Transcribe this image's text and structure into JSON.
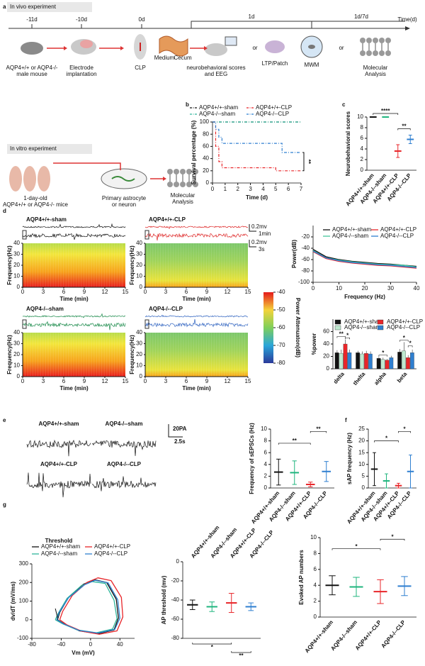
{
  "panel_labels": [
    "a",
    "b",
    "c",
    "d",
    "e",
    "f",
    "g"
  ],
  "schematic": {
    "in_vivo": {
      "title": "In vivo experiment",
      "timeline_labels": [
        "-11d",
        "-10d",
        "0d",
        "1d",
        "1d/7d"
      ],
      "time_axis_label": "Time(d)",
      "steps": [
        {
          "lines": [
            "AQP4+/+ or AQP4-/-",
            "male mouse"
          ]
        },
        {
          "lines": [
            "Electrode",
            "implantation"
          ]
        },
        {
          "lines": [
            "CLP"
          ]
        },
        {
          "lines": [
            "Medium"
          ]
        },
        {
          "lines": [
            "Cecum"
          ]
        },
        {
          "lines": [
            "neurobehavioral scores",
            "and EEG"
          ]
        },
        {
          "lines": [
            "or"
          ]
        },
        {
          "lines": [
            "LTP/Patch"
          ]
        },
        {
          "lines": [
            "MWM"
          ]
        },
        {
          "lines": [
            "or"
          ]
        },
        {
          "lines": [
            "Molecular",
            "Analysis"
          ]
        }
      ]
    },
    "in_vitro": {
      "title": "In vitro experiment",
      "steps": [
        {
          "lines": [
            "1-day-old",
            "AQP4+/+ or AQP4-/- mice"
          ]
        },
        {
          "lines": [
            "Primary astrocyte",
            "or neuron"
          ]
        },
        {
          "lines": [
            "Molecular",
            "Analysis"
          ]
        }
      ]
    }
  },
  "eeg": {
    "traces": [
      "AQP4+/+-sham",
      "AQP4+/+-CLP",
      "AQP4-/--sham",
      "AQP4-/--CLP"
    ],
    "scale_bars": [
      "0.2mv",
      "1min",
      "0.2mv",
      "3s"
    ],
    "spectrogram": {
      "ylabel": "Frequency(Hz)",
      "xlabel": "Time (min)",
      "ylim": [
        0,
        40
      ],
      "yticks": [
        0,
        10,
        20,
        30,
        40
      ],
      "xlim": [
        0,
        15
      ],
      "xticks": [
        0,
        3,
        6,
        9,
        12,
        15
      ]
    },
    "colorbar": {
      "label": "Power Attenuaton(dB)",
      "lim": [
        -80,
        -40
      ],
      "ticks": [
        -40,
        -50,
        -60,
        -70,
        -80
      ]
    }
  },
  "patch": {
    "traces": [
      "AQP4+/+-sham",
      "AQP4-/--sham",
      "AQP4+/+-CLP",
      "AQP4-/--CLP"
    ],
    "scale_bars": [
      "20PA",
      "2.5s"
    ]
  },
  "chart_data": [
    {
      "type": "step",
      "ylabel": "Survival percentage (%)",
      "xlabel": "Time (d)",
      "x": [
        0,
        0.25,
        0.5,
        0.75,
        1,
        2,
        3,
        4,
        5,
        5.5,
        7
      ],
      "xlim": [
        0,
        7
      ],
      "xticks": [
        0,
        1,
        2,
        3,
        4,
        5,
        6,
        7
      ],
      "ylim": [
        0,
        100
      ],
      "yticks": [
        0,
        20,
        40,
        60,
        80,
        100
      ],
      "line_style": "dash-dot",
      "legend": "top",
      "series": [
        {
          "name": "AQP4+/+-sham",
          "color": "#111111",
          "values": [
            100,
            100,
            100,
            100,
            100,
            100,
            100,
            100,
            100,
            100,
            100
          ]
        },
        {
          "name": "AQP4-/--sham",
          "color": "#2fb59a",
          "values": [
            100,
            100,
            100,
            100,
            100,
            100,
            100,
            100,
            100,
            100,
            100
          ]
        },
        {
          "name": "AQP4+/+-CLP",
          "color": "#e8262a",
          "values": [
            100,
            60,
            35,
            25,
            25,
            25,
            25,
            25,
            20,
            20,
            20
          ]
        },
        {
          "name": "AQP4-/--CLP",
          "color": "#2f7fd0",
          "values": [
            100,
            88,
            75,
            65,
            65,
            65,
            65,
            65,
            65,
            50,
            50
          ]
        }
      ],
      "annotations": [
        "**"
      ]
    },
    {
      "type": "errorbar",
      "ylabel": "Neurobehavioral scores",
      "categories": [
        "AQP4+/+-sham",
        "AQP4-/--sham",
        "AQP4+/+-CLP",
        "AQP4-/--CLP"
      ],
      "values": [
        10,
        10,
        3.6,
        5.8
      ],
      "errors": [
        0,
        0,
        1.2,
        0.8
      ],
      "colors": [
        "#111111",
        "#1fb57e",
        "#e8262a",
        "#2f7fd0"
      ],
      "ylim": [
        0,
        10
      ],
      "yticks": [
        0,
        2,
        4,
        6,
        8,
        10
      ],
      "annotations": [
        "****",
        "**"
      ]
    },
    {
      "type": "line",
      "ylabel": "Power(dB)",
      "xlabel": "Frequency (Hz)",
      "x": [
        0,
        5,
        10,
        15,
        20,
        25,
        30,
        35,
        40
      ],
      "xlim": [
        0,
        40
      ],
      "xticks": [
        0,
        10,
        20,
        30,
        40
      ],
      "ylim": [
        -100,
        0
      ],
      "yticks": [
        -100,
        -80,
        -60,
        -40,
        -20
      ],
      "legend": "top",
      "series": [
        {
          "name": "AQP4+/+-sham",
          "color": "#111111",
          "values": [
            -42,
            -55,
            -60,
            -63,
            -65,
            -67,
            -68,
            -70,
            -72
          ]
        },
        {
          "name": "AQP4-/--sham",
          "color": "#45c79a",
          "values": [
            -44,
            -57,
            -61,
            -64,
            -66,
            -68,
            -69,
            -70,
            -73
          ]
        },
        {
          "name": "AQP4+/+-CLP",
          "color": "#e8262a",
          "values": [
            -46,
            -58,
            -63,
            -66,
            -68,
            -70,
            -71,
            -73,
            -75
          ]
        },
        {
          "name": "AQP4-/--CLP",
          "color": "#2f7fd0",
          "values": [
            -45,
            -57,
            -62,
            -65,
            -67,
            -69,
            -70,
            -72,
            -74
          ]
        }
      ]
    },
    {
      "type": "bar",
      "ylabel": "%power",
      "categories": [
        "delta",
        "thelta",
        "alpha",
        "beta"
      ],
      "ylim": [
        0,
        80
      ],
      "yticks": [
        0,
        20,
        40,
        60
      ],
      "legend": "top",
      "series": [
        {
          "name": "AQP4+/+-sham",
          "color": "#111111",
          "values": [
            26,
            26,
            17,
            27
          ],
          "errors": [
            4,
            3,
            2,
            5
          ]
        },
        {
          "name": "AQP4-/--sham",
          "color": "#bfe8cf",
          "values": [
            25,
            24,
            15,
            29
          ],
          "errors": [
            6,
            4,
            3,
            14
          ]
        },
        {
          "name": "AQP4+/+-CLP",
          "color": "#e8262a",
          "values": [
            40,
            25,
            14,
            18
          ],
          "errors": [
            7,
            4,
            2,
            4
          ]
        },
        {
          "name": "AQP4-/--CLP",
          "color": "#2f7fd0",
          "values": [
            26,
            24,
            18,
            26
          ],
          "errors": [
            5,
            4,
            3,
            5
          ]
        }
      ],
      "annotations": [
        "**",
        "*",
        "*",
        "*",
        "*"
      ]
    },
    {
      "type": "errorbar",
      "ylabel": "Frequency of sEPSCs (Hz)",
      "categories": [
        "AQP4+/+-sham",
        "AQP4-/--sham",
        "AQP4+/+-CLP",
        "AQP4-/--CLP"
      ],
      "values": [
        2.7,
        2.6,
        0.6,
        2.8
      ],
      "errors": [
        2.2,
        2.0,
        0.4,
        1.7
      ],
      "colors": [
        "#111111",
        "#1fb57e",
        "#e8262a",
        "#2f7fd0"
      ],
      "ylim": [
        0,
        10
      ],
      "yticks": [
        0,
        2,
        4,
        6,
        8,
        10
      ],
      "annotations": [
        "**",
        "**"
      ]
    },
    {
      "type": "errorbar",
      "ylabel": "sAP frequency (Hz)",
      "categories": [
        "AQP4+/+-sham",
        "AQP4-/--sham",
        "AQP4+/+-CLP",
        "AQP4-/--CLP"
      ],
      "values": [
        8,
        3,
        1,
        7
      ],
      "errors": [
        7,
        3,
        1,
        7
      ],
      "colors": [
        "#111111",
        "#1fb57e",
        "#e8262a",
        "#2f7fd0"
      ],
      "ylim": [
        0,
        25
      ],
      "yticks": [
        0,
        5,
        10,
        15,
        20,
        25
      ],
      "annotations": [
        "*",
        "*"
      ]
    },
    {
      "type": "loop",
      "ylabel": "dv/dT (mV/ms)",
      "xlabel": "Vm (mV)",
      "xlim": [
        -80,
        60
      ],
      "xticks": [
        -80,
        -40,
        0,
        40
      ],
      "ylim": [
        -100,
        300
      ],
      "yticks": [
        -100,
        0,
        100,
        200,
        300
      ],
      "legend": "top",
      "series": [
        {
          "name": "AQP4+/+-sham",
          "color": "#111111",
          "x": [
            -45,
            -42,
            -30,
            -10,
            5,
            22,
            35,
            38,
            32,
            10,
            -15,
            -35,
            -45
          ],
          "values": [
            0,
            40,
            120,
            190,
            215,
            200,
            110,
            10,
            -55,
            -75,
            -60,
            -25,
            0
          ]
        },
        {
          "name": "AQP4-/--sham",
          "color": "#2fb59a",
          "x": [
            -48,
            -44,
            -32,
            -12,
            2,
            20,
            32,
            36,
            30,
            8,
            -18,
            -38,
            -48
          ],
          "values": [
            0,
            35,
            115,
            185,
            205,
            195,
            105,
            5,
            -50,
            -70,
            -55,
            -22,
            0
          ]
        },
        {
          "name": "AQP4+/+-CLP",
          "color": "#e8262a",
          "x": [
            -42,
            -38,
            -25,
            -5,
            10,
            28,
            42,
            44,
            36,
            12,
            -12,
            -32,
            -42
          ],
          "values": [
            0,
            45,
            130,
            200,
            225,
            210,
            120,
            15,
            -60,
            -78,
            -62,
            -28,
            0
          ]
        },
        {
          "name": "AQP4-/--CLP",
          "color": "#2f7fd0",
          "x": [
            -46,
            -43,
            -30,
            -8,
            6,
            24,
            37,
            40,
            33,
            10,
            -16,
            -36,
            -46
          ],
          "values": [
            0,
            38,
            118,
            188,
            212,
            198,
            108,
            8,
            -52,
            -72,
            -57,
            -24,
            0
          ]
        }
      ],
      "annotations": [
        "Threshold"
      ]
    },
    {
      "type": "errorbar",
      "ylabel": "AP threshold (mv)",
      "categories": [
        "AQP4+/+-sham",
        "AQP4-/--sham",
        "AQP4+/+-CLP",
        "AQP4-/--CLP"
      ],
      "values": [
        -45,
        -47,
        -43,
        -47
      ],
      "errors": [
        5,
        5,
        10,
        4
      ],
      "colors": [
        "#111111",
        "#1fb57e",
        "#e8262a",
        "#2f7fd0"
      ],
      "ylim": [
        -80,
        0
      ],
      "yticks": [
        -80,
        -60,
        -40,
        -20,
        0
      ],
      "category_labels": "top",
      "annotations": [
        "*",
        "**"
      ]
    },
    {
      "type": "errorbar",
      "ylabel": "Evoked AP numbers",
      "categories": [
        "AQP4+/+-sham",
        "AQP4-/--sham",
        "AQP4+/+-CLP",
        "AQP4-/--CLP"
      ],
      "values": [
        4,
        3.8,
        3.2,
        3.9
      ],
      "errors": [
        1.2,
        1.2,
        1.5,
        1.2
      ],
      "colors": [
        "#111111",
        "#1fb57e",
        "#e8262a",
        "#2f7fd0"
      ],
      "ylim": [
        0,
        10
      ],
      "yticks": [
        0,
        2,
        4,
        6,
        8,
        10
      ],
      "annotations": [
        "*",
        "*"
      ]
    }
  ]
}
